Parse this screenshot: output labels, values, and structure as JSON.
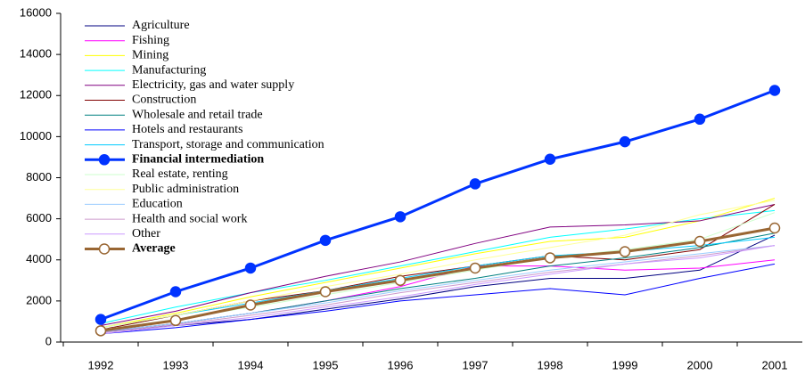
{
  "chart_data": {
    "type": "line",
    "categories": [
      "1992",
      "1993",
      "1994",
      "1995",
      "1996",
      "1997",
      "1998",
      "1999",
      "2000",
      "2001"
    ],
    "ylim": [
      0,
      16000
    ],
    "yticks": [
      0,
      2000,
      4000,
      6000,
      8000,
      10000,
      12000,
      14000,
      16000
    ],
    "legend": "top-left",
    "series": [
      {
        "name": "Agriculture",
        "color": "#000080",
        "values": [
          500,
          800,
          1100,
          1600,
          2100,
          2700,
          3100,
          3100,
          3500,
          5200
        ]
      },
      {
        "name": "Fishing",
        "color": "#ff00ff",
        "values": [
          500,
          900,
          1400,
          2000,
          2700,
          3700,
          3700,
          3500,
          3600,
          4000
        ]
      },
      {
        "name": "Mining",
        "color": "#ffff00",
        "values": [
          700,
          1400,
          2200,
          2900,
          3600,
          4300,
          4900,
          5100,
          5900,
          7000
        ]
      },
      {
        "name": "Manufacturing",
        "color": "#00ffff",
        "values": [
          900,
          1700,
          2400,
          3000,
          3700,
          4400,
          5100,
          5500,
          6000,
          6400
        ]
      },
      {
        "name": "Electricity, gas and water supply",
        "color": "#800080",
        "values": [
          800,
          1500,
          2400,
          3200,
          3900,
          4800,
          5600,
          5700,
          5900,
          6700
        ]
      },
      {
        "name": "Construction",
        "color": "#800000",
        "values": [
          600,
          1300,
          2000,
          2500,
          3200,
          3700,
          4200,
          4000,
          4500,
          6700
        ]
      },
      {
        "name": "Wholesale and retail trade",
        "color": "#008080",
        "values": [
          500,
          900,
          1400,
          2000,
          2600,
          3100,
          3700,
          4100,
          4600,
          5300
        ]
      },
      {
        "name": "Hotels and restaurants",
        "color": "#0000ff",
        "values": [
          400,
          700,
          1100,
          1500,
          2000,
          2300,
          2600,
          2300,
          3100,
          3800
        ]
      },
      {
        "name": "Transport, storage and communication",
        "color": "#00ccff",
        "values": [
          700,
          1300,
          1900,
          2500,
          3100,
          3700,
          4200,
          4400,
          4700,
          5100
        ]
      },
      {
        "name": "Financial intermediation",
        "color": "#0033ff",
        "line_width": 3,
        "marker": "filled",
        "values": [
          1100,
          2450,
          3600,
          4950,
          6100,
          7700,
          8900,
          9750,
          10850,
          12250
        ]
      },
      {
        "name": "Real estate, renting",
        "color": "#ccffcc",
        "values": [
          600,
          1100,
          1700,
          2300,
          2900,
          3500,
          4100,
          4500,
          5000,
          6300
        ]
      },
      {
        "name": "Public administration",
        "color": "#ffff99",
        "values": [
          700,
          1300,
          2000,
          2700,
          3300,
          4000,
          4600,
          5200,
          6200,
          6900
        ]
      },
      {
        "name": "Education",
        "color": "#99ccff",
        "values": [
          500,
          900,
          1400,
          1900,
          2500,
          3000,
          3500,
          3900,
          4300,
          4700
        ]
      },
      {
        "name": "Health and social work",
        "color": "#cc99cc",
        "values": [
          450,
          850,
          1300,
          1800,
          2400,
          2900,
          3400,
          3800,
          4200,
          4700
        ]
      },
      {
        "name": "Other",
        "color": "#cc99ff",
        "values": [
          400,
          800,
          1200,
          1700,
          2200,
          2800,
          3300,
          3800,
          4100,
          4700
        ]
      },
      {
        "name": "Average",
        "color": "#996633",
        "line_width": 3,
        "marker": "open",
        "values": [
          550,
          1050,
          1800,
          2450,
          3000,
          3600,
          4100,
          4400,
          4900,
          5550
        ]
      }
    ]
  }
}
